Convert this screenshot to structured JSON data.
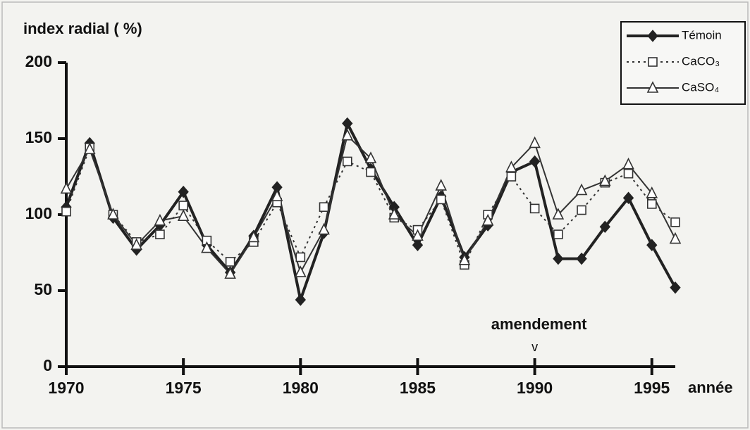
{
  "chart_data": {
    "type": "line",
    "title": "index radial ( %)",
    "xlabel": "année",
    "x": [
      1970,
      1971,
      1972,
      1973,
      1974,
      1975,
      1976,
      1977,
      1978,
      1979,
      1980,
      1981,
      1982,
      1983,
      1984,
      1985,
      1986,
      1987,
      1988,
      1989,
      1990,
      1991,
      1992,
      1993,
      1994,
      1995,
      1996
    ],
    "series": [
      {
        "name": "Témoin",
        "color": "#222222",
        "marker": "diamond",
        "dash": "solid",
        "width": 4,
        "values": [
          105,
          147,
          98,
          77,
          93,
          115,
          80,
          62,
          86,
          118,
          44,
          88,
          160,
          130,
          105,
          80,
          112,
          72,
          93,
          128,
          135,
          71,
          71,
          92,
          111,
          80,
          52
        ]
      },
      {
        "name": "CaCO₃",
        "color": "#333333",
        "marker": "square",
        "dash": "dotted",
        "width": 2,
        "values": [
          102,
          144,
          100,
          82,
          87,
          106,
          83,
          69,
          82,
          108,
          72,
          105,
          135,
          128,
          98,
          90,
          110,
          67,
          100,
          125,
          104,
          87,
          103,
          121,
          127,
          107,
          95
        ]
      },
      {
        "name": "CaSO₄",
        "color": "#333333",
        "marker": "triangle",
        "dash": "solid",
        "width": 2,
        "values": [
          117,
          143,
          100,
          80,
          96,
          99,
          78,
          61,
          85,
          112,
          62,
          90,
          152,
          137,
          100,
          86,
          119,
          70,
          96,
          131,
          147,
          100,
          116,
          122,
          133,
          114,
          84
        ]
      }
    ],
    "xlim": [
      1970,
      1996
    ],
    "xticks": [
      1970,
      1975,
      1980,
      1985,
      1990,
      1995
    ],
    "ylim": [
      0,
      200
    ],
    "yticks": [
      0,
      50,
      100,
      150,
      200
    ],
    "grid": false,
    "legend": "upper right",
    "annotations": [
      {
        "text": "amendement",
        "marker": "v",
        "x": 1990
      }
    ]
  }
}
